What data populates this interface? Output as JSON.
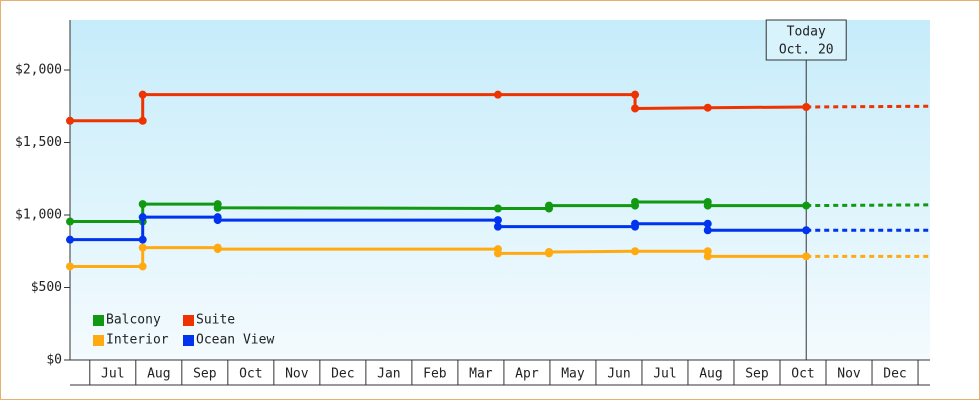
{
  "chart_data": {
    "type": "line",
    "categories": [
      "Jul",
      "Aug",
      "Sep",
      "Oct",
      "Nov",
      "Dec",
      "Jan",
      "Feb",
      "Mar",
      "Apr",
      "May",
      "Jun",
      "Jul",
      "Aug",
      "Sep",
      "Oct",
      "Nov",
      "Dec"
    ],
    "xlim": [
      -0.43,
      18.26
    ],
    "ylim": [
      0,
      2345
    ],
    "yticks": [
      {
        "value": 0,
        "label": "$0"
      },
      {
        "value": 500,
        "label": "$500"
      },
      {
        "value": 1000,
        "label": "$1,000"
      },
      {
        "value": 1500,
        "label": "$1,500"
      },
      {
        "value": 2000,
        "label": "$2,000"
      }
    ],
    "annotation": {
      "lines": [
        "Today",
        "Oct. 20"
      ],
      "x": 15.57
    },
    "series": [
      {
        "name": "Balcony",
        "color": "#119911",
        "x": [
          -0.43,
          1.15,
          1.15,
          2.78,
          2.78,
          8.87,
          9.98,
          9.98,
          11.85,
          11.85,
          13.43,
          13.43,
          15.57
        ],
        "values": [
          955,
          955,
          1075,
          1075,
          1050,
          1045,
          1045,
          1065,
          1065,
          1090,
          1090,
          1065,
          1065
        ],
        "forecast": {
          "x": [
            15.57,
            18.26
          ],
          "values": [
            1065,
            1070
          ]
        }
      },
      {
        "name": "Suite",
        "color": "#ee3300",
        "x": [
          -0.43,
          1.15,
          1.15,
          8.87,
          11.85,
          11.85,
          13.43,
          15.57
        ],
        "values": [
          1650,
          1650,
          1830,
          1830,
          1830,
          1735,
          1740,
          1745
        ],
        "forecast": {
          "x": [
            15.57,
            18.26
          ],
          "values": [
            1745,
            1750
          ]
        }
      },
      {
        "name": "Interior",
        "color": "#ffaa11",
        "x": [
          -0.43,
          1.15,
          1.15,
          2.78,
          2.78,
          8.87,
          8.87,
          9.98,
          9.98,
          11.85,
          13.43,
          13.43,
          15.57
        ],
        "values": [
          645,
          645,
          775,
          775,
          765,
          765,
          735,
          735,
          745,
          750,
          750,
          715,
          715
        ],
        "forecast": {
          "x": [
            15.57,
            18.26
          ],
          "values": [
            715,
            715
          ]
        }
      },
      {
        "name": "Ocean View",
        "color": "#0033ee",
        "x": [
          -0.43,
          1.15,
          1.15,
          2.78,
          2.78,
          8.87,
          8.87,
          11.85,
          11.85,
          13.43,
          13.43,
          15.57
        ],
        "values": [
          830,
          830,
          985,
          985,
          965,
          965,
          920,
          920,
          940,
          940,
          895,
          895
        ],
        "forecast": {
          "x": [
            15.57,
            18.26
          ],
          "values": [
            895,
            895
          ]
        }
      }
    ]
  }
}
